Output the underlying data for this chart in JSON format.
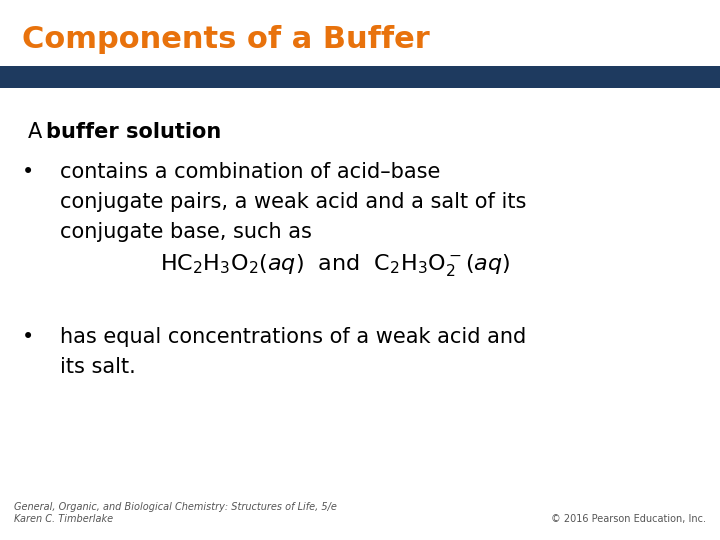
{
  "title": "Components of a Buffer",
  "title_color": "#E8720C",
  "title_fontsize": 22,
  "header_bar_color": "#1E3A5F",
  "bg_color": "#FFFFFF",
  "body_text_color": "#000000",
  "body_fontsize": 15,
  "formula_fontsize": 15,
  "footer_fontsize": 7,
  "footer_color": "#555555",
  "footer_left1": "General, Organic, and Biological Chemistry: Structures of Life, 5/e",
  "footer_left2": "Karen C. Timberlake",
  "footer_right": "© 2016 Pearson Education, Inc."
}
